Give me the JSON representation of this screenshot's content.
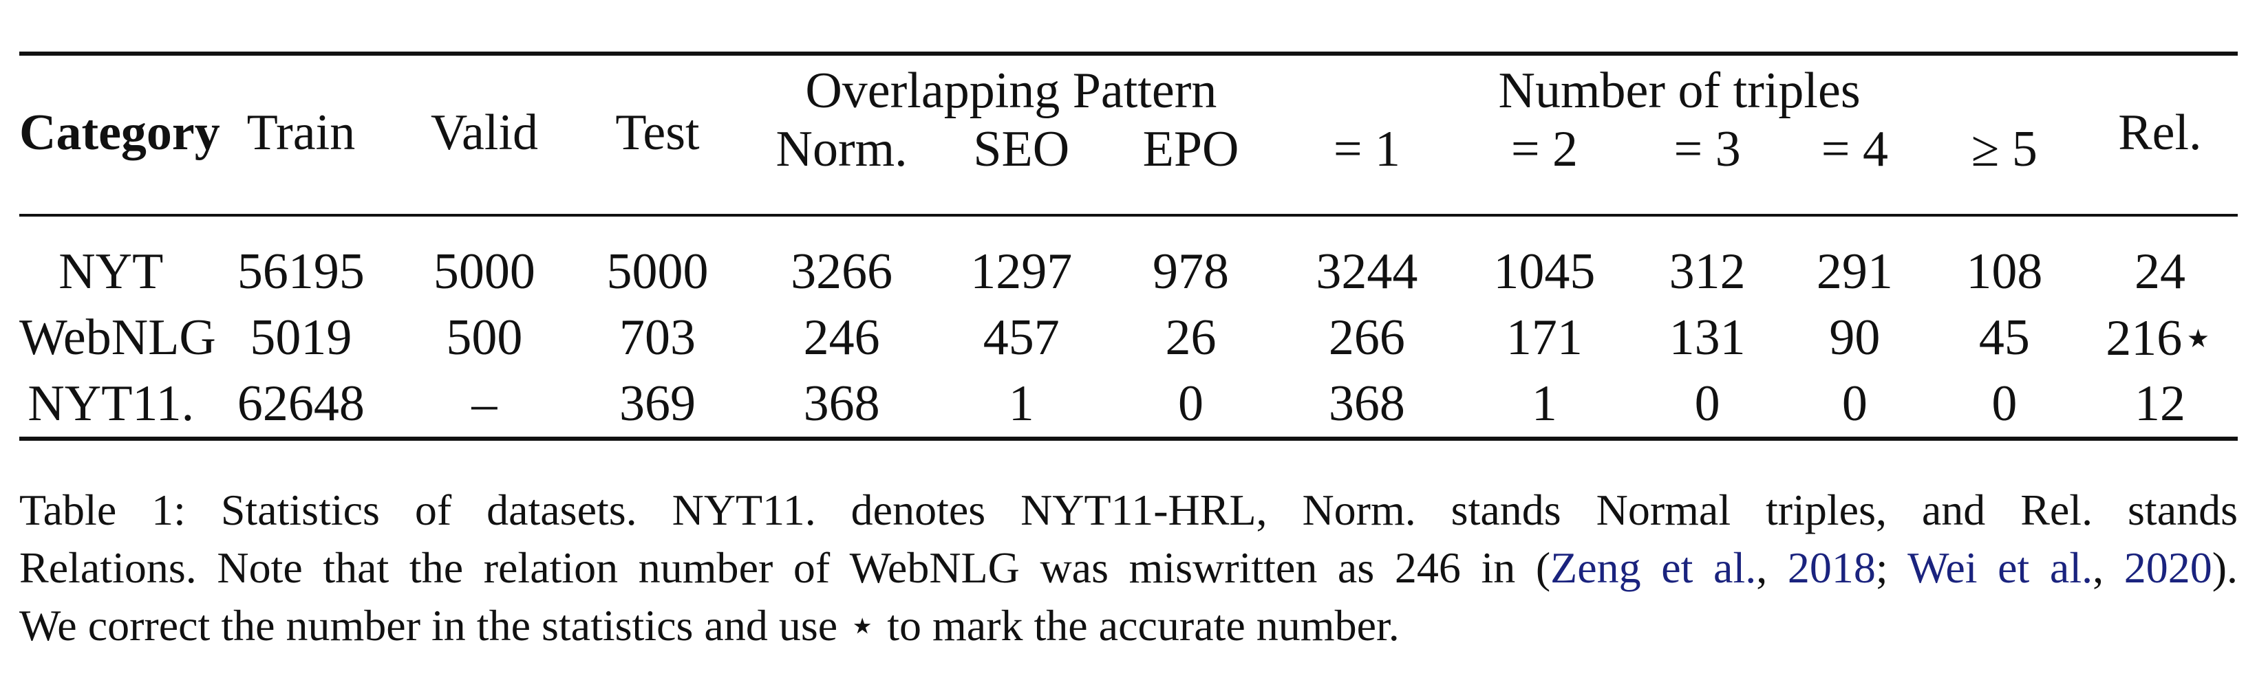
{
  "table": {
    "header_group": {
      "category": "Category",
      "train": "Train",
      "valid": "Valid",
      "test": "Test",
      "overlapping_pattern": "Overlapping Pattern",
      "number_of_triples": "Number of triples",
      "rel": "Rel."
    },
    "header_sub": {
      "norm": "Norm.",
      "seo": "SEO",
      "epo": "EPO",
      "eq1": "= 1",
      "eq2": "= 2",
      "eq3": "= 3",
      "eq4": "= 4",
      "ge5": "≥ 5"
    },
    "rows": [
      {
        "category": "NYT",
        "train": "56195",
        "valid": "5000",
        "test": "5000",
        "norm": "3266",
        "seo": "1297",
        "epo": "978",
        "eq1": "3244",
        "eq2": "1045",
        "eq3": "312",
        "eq4": "291",
        "ge5": "108",
        "rel": "24"
      },
      {
        "category": "WebNLG",
        "train": "5019",
        "valid": "500",
        "test": "703",
        "norm": "246",
        "seo": "457",
        "epo": "26",
        "eq1": "266",
        "eq2": "171",
        "eq3": "131",
        "eq4": "90",
        "ge5": "45",
        "rel": "216⋆"
      },
      {
        "category": "NYT11.",
        "train": "62648",
        "valid": "–",
        "test": "369",
        "norm": "368",
        "seo": "1",
        "epo": "0",
        "eq1": "368",
        "eq2": "1",
        "eq3": "0",
        "eq4": "0",
        "ge5": "0",
        "rel": "12"
      }
    ]
  },
  "caption": {
    "line1": "Table 1: Statistics of datasets. NYT11. denotes NYT11-HRL, Norm. stands Normal triples, and Rel. stands",
    "line2_pre": "Relations. Note that the relation number of WebNLG was miswritten as 246 in (",
    "cite1_authors": "Zeng et al.",
    "sep1": ", ",
    "cite1_year": "2018",
    "sep2": "; ",
    "cite2_authors": "Wei et al.",
    "sep3": ", ",
    "cite2_year": "2020",
    "line2_post": ").",
    "line3": "We correct the number in the statistics and use ⋆ to mark the accurate number."
  },
  "colors": {
    "text": "#111111",
    "citation": "#1a237e",
    "background": "#ffffff"
  }
}
